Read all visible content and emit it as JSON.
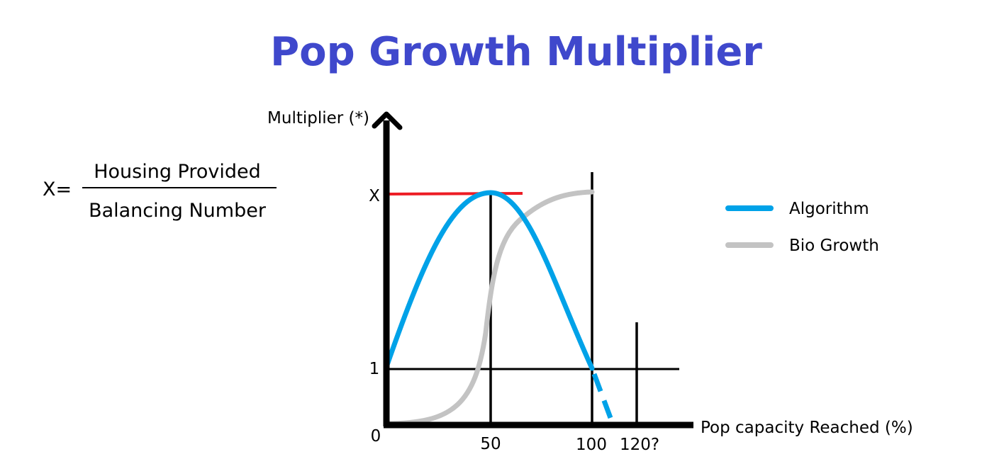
{
  "chart_data": {
    "type": "line",
    "title": "Pop Growth Multiplier",
    "xlabel": "Pop capacity Reached (%)",
    "ylabel": "Multiplier (*)",
    "x_ticks": [
      "50",
      "100",
      "120?"
    ],
    "y_ticks": [
      "0",
      "1",
      "X"
    ],
    "legend_position": "right",
    "series": [
      {
        "name": "Algorithm",
        "color": "#00a2e8",
        "points": [
          [
            0,
            1
          ],
          [
            50,
            "X"
          ],
          [
            100,
            1
          ]
        ],
        "extension": [
          [
            100,
            1
          ],
          [
            110,
            0
          ]
        ],
        "extension_style": "dashed"
      },
      {
        "name": "Bio Growth",
        "color": "#c3c3c3",
        "shape": "sigmoid",
        "points": [
          [
            0,
            0
          ],
          [
            50,
            0.5
          ],
          [
            100,
            "X"
          ]
        ]
      }
    ],
    "reference_lines": [
      {
        "kind": "horizontal",
        "at": "X",
        "color": "#ed1c24"
      },
      {
        "kind": "horizontal",
        "at": "1",
        "color": "#000000"
      },
      {
        "kind": "vertical",
        "at": "50",
        "color": "#000000"
      },
      {
        "kind": "vertical",
        "at": "100",
        "color": "#000000"
      },
      {
        "kind": "vertical",
        "at": "120?",
        "color": "#000000"
      }
    ]
  },
  "formula": {
    "lhs": "X=",
    "numerator": "Housing Provided",
    "denominator": "Balancing Number"
  },
  "colors": {
    "title": "#3f48cc",
    "axis": "#000000"
  }
}
